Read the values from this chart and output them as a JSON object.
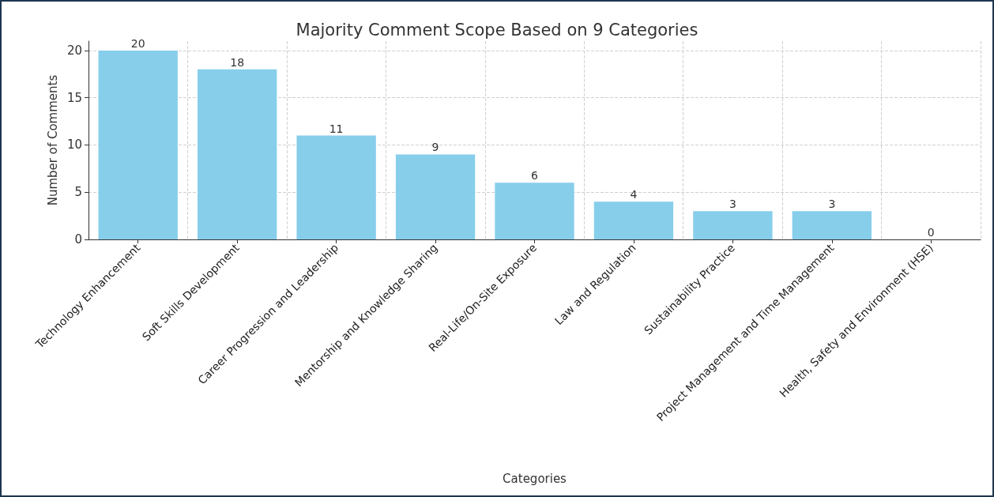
{
  "chart_data": {
    "type": "bar",
    "title": "Majority Comment Scope Based on 9 Categories",
    "xlabel": "Categories",
    "ylabel": "Number of Comments",
    "categories": [
      "Technology Enhancement",
      "Soft Skills Development",
      "Career Progression and Leadership",
      "Mentorship and Knowledge Sharing",
      "Real-Life/On-Site Exposure",
      "Law and Regulation",
      "Sustainability Practice",
      "Project Management and Time Management",
      "Health, Safety and Environment (HSE)"
    ],
    "values": [
      20,
      18,
      11,
      9,
      6,
      4,
      3,
      3,
      0
    ],
    "color": "#87ceeb",
    "ylim": [
      0,
      21
    ],
    "yticks": [
      0,
      5,
      10,
      15,
      20
    ],
    "grid": true,
    "data_labels": true
  }
}
